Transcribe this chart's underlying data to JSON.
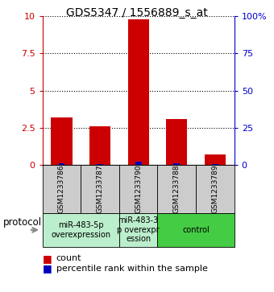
{
  "title": "GDS5347 / 1556889_s_at",
  "samples": [
    "GSM1233786",
    "GSM1233787",
    "GSM1233790",
    "GSM1233788",
    "GSM1233789"
  ],
  "count_values": [
    3.2,
    2.6,
    9.8,
    3.1,
    0.7
  ],
  "percentile_values": [
    0.12,
    0.07,
    0.22,
    0.1,
    0.04
  ],
  "ylim_left": [
    0,
    10
  ],
  "ylim_right": [
    0,
    100
  ],
  "yticks_left": [
    0,
    2.5,
    5,
    7.5,
    10
  ],
  "yticks_right": [
    0,
    25,
    50,
    75,
    100
  ],
  "ytick_labels_left": [
    "0",
    "2.5",
    "5",
    "7.5",
    "10"
  ],
  "ytick_labels_right": [
    "0",
    "25",
    "50",
    "75",
    "100%"
  ],
  "left_axis_color": "#cc0000",
  "right_axis_color": "#0000cc",
  "bar_color_count": "#cc0000",
  "bar_color_percentile": "#0000bb",
  "grid_color": "black",
  "group_spans": [
    [
      0,
      1,
      "miR-483-5p\noverexpression",
      "#bbeecc"
    ],
    [
      2,
      2,
      "miR-483-3\np overexpr\nession",
      "#bbeecc"
    ],
    [
      3,
      4,
      "control",
      "#44cc44"
    ]
  ],
  "protocol_label": "protocol",
  "legend_count_label": "count",
  "legend_percentile_label": "percentile rank within the sample",
  "title_fontsize": 10,
  "tick_fontsize": 8,
  "legend_fontsize": 8,
  "sample_label_fontsize": 6.5,
  "proto_fontsize": 7
}
